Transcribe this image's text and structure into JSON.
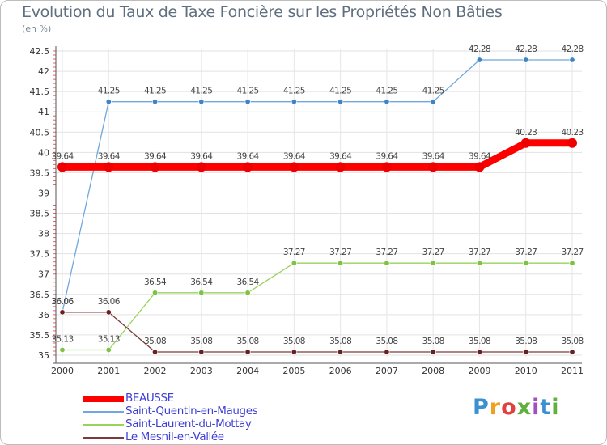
{
  "chart_data": {
    "type": "line",
    "title": "Evolution du Taux de Taxe Foncière sur les Propriétés Non Bâties",
    "ylabel": "(en %)",
    "xlabel": "",
    "ylim": [
      35,
      42.5
    ],
    "y_ticks": [
      "35",
      "35.5",
      "36",
      "36.5",
      "37",
      "37.5",
      "38",
      "38.5",
      "39",
      "39.5",
      "40",
      "40.5",
      "41",
      "41.5",
      "42",
      "42.5"
    ],
    "categories": [
      "2000",
      "2001",
      "2002",
      "2003",
      "2004",
      "2005",
      "2006",
      "2007",
      "2008",
      "2009",
      "2010",
      "2011"
    ],
    "series": [
      {
        "name": "BEAUSSE",
        "color": "#ff0000",
        "point_color": "#ee0000",
        "emphasis": "bold",
        "values": [
          39.64,
          39.64,
          39.64,
          39.64,
          39.64,
          39.64,
          39.64,
          39.64,
          39.64,
          39.64,
          40.23,
          40.23
        ],
        "labels": [
          "39.64",
          "39.64",
          "39.64",
          "39.64",
          "39.64",
          "39.64",
          "39.64",
          "39.64",
          "39.64",
          "39.64",
          "40.23",
          "40.23"
        ]
      },
      {
        "name": "Saint-Quentin-en-Mauges",
        "color": "#6fa8dc",
        "point_color": "#3d85c6",
        "emphasis": "normal",
        "values": [
          36.06,
          41.25,
          41.25,
          41.25,
          41.25,
          41.25,
          41.25,
          41.25,
          41.25,
          42.28,
          42.28,
          42.28
        ],
        "labels": [
          "36.06",
          "41.25",
          "41.25",
          "41.25",
          "41.25",
          "41.25",
          "41.25",
          "41.25",
          "41.25",
          "42.28",
          "42.28",
          "42.28"
        ]
      },
      {
        "name": "Saint-Laurent-du-Mottay",
        "color": "#99d35b",
        "point_color": "#7dc242",
        "emphasis": "normal",
        "values": [
          35.13,
          35.13,
          36.54,
          36.54,
          36.54,
          37.27,
          37.27,
          37.27,
          37.27,
          37.27,
          37.27,
          37.27
        ],
        "labels": [
          "35.13",
          "35.13",
          "36.54",
          "36.54",
          "36.54",
          "37.27",
          "37.27",
          "37.27",
          "37.27",
          "37.27",
          "37.27",
          "37.27"
        ]
      },
      {
        "name": "Le Mesnil-en-Vallée",
        "color": "#7b3b3b",
        "point_color": "#6b2020",
        "emphasis": "normal",
        "values": [
          36.06,
          36.06,
          35.08,
          35.08,
          35.08,
          35.08,
          35.08,
          35.08,
          35.08,
          35.08,
          35.08,
          35.08
        ],
        "labels": [
          "36.06",
          "36.06",
          "35.08",
          "35.08",
          "35.08",
          "35.08",
          "35.08",
          "35.08",
          "35.08",
          "35.08",
          "35.08",
          "35.08"
        ]
      }
    ],
    "legend_position": "bottom-left"
  },
  "logo": {
    "text": "Proxiti"
  }
}
